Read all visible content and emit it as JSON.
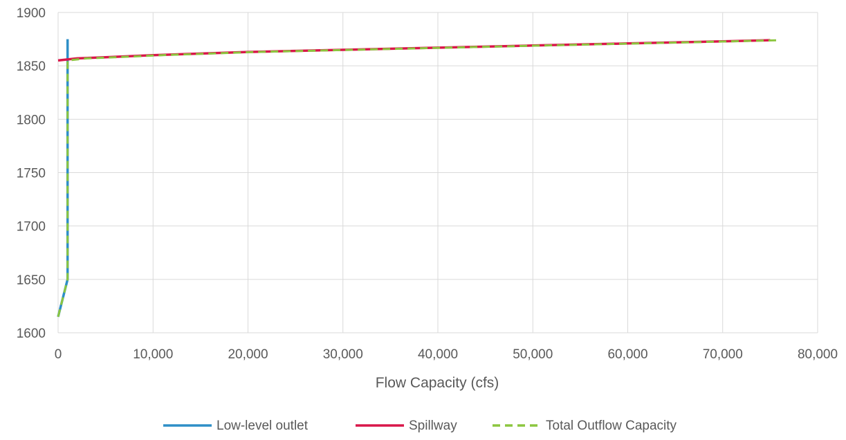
{
  "chart_data": {
    "type": "line",
    "title": "",
    "xlabel": "Flow Capacity (cfs)",
    "ylabel": "",
    "xlim": [
      0,
      80000
    ],
    "ylim": [
      1600,
      1900
    ],
    "x_ticks": [
      0,
      10000,
      20000,
      30000,
      40000,
      50000,
      60000,
      70000,
      80000
    ],
    "x_tick_labels": [
      "0",
      "10,000",
      "20,000",
      "30,000",
      "40,000",
      "50,000",
      "60,000",
      "70,000",
      "80,000"
    ],
    "y_ticks": [
      1600,
      1650,
      1700,
      1750,
      1800,
      1850,
      1900
    ],
    "y_tick_labels": [
      "1600",
      "1650",
      "1700",
      "1750",
      "1800",
      "1850",
      "1900"
    ],
    "grid": true,
    "legend_position": "bottom",
    "series": [
      {
        "name": "Low-level outlet",
        "color": "#2e8fc7",
        "dash": "solid",
        "points": [
          [
            0,
            1615
          ],
          [
            1000,
            1650
          ],
          [
            1000,
            1855
          ],
          [
            1000,
            1875
          ]
        ]
      },
      {
        "name": "Spillway",
        "color": "#d9174a",
        "dash": "solid",
        "points": [
          [
            0,
            1855
          ],
          [
            2000,
            1857
          ],
          [
            5000,
            1858
          ],
          [
            10000,
            1860
          ],
          [
            20000,
            1863
          ],
          [
            30000,
            1865
          ],
          [
            40000,
            1867
          ],
          [
            50000,
            1869
          ],
          [
            60000,
            1871
          ],
          [
            70000,
            1873
          ],
          [
            75000,
            1874
          ]
        ]
      },
      {
        "name": "Total Outflow Capacity",
        "color": "#8cc63f",
        "dash": "dashed",
        "points": [
          [
            0,
            1615
          ],
          [
            1000,
            1650
          ],
          [
            1000,
            1855
          ],
          [
            3000,
            1857
          ],
          [
            6000,
            1858
          ],
          [
            11000,
            1860
          ],
          [
            21000,
            1863
          ],
          [
            31000,
            1865
          ],
          [
            41000,
            1867
          ],
          [
            51000,
            1869
          ],
          [
            61000,
            1871
          ],
          [
            71000,
            1873
          ],
          [
            76000,
            1874
          ]
        ]
      }
    ]
  }
}
